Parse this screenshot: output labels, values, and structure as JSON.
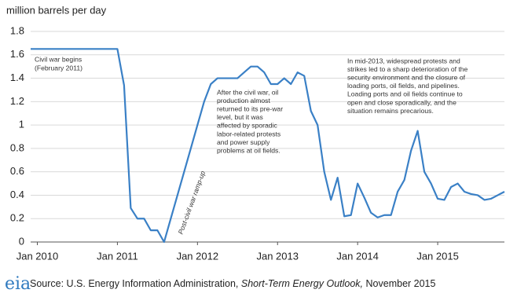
{
  "chart_data": {
    "type": "line",
    "y_axis_label": "million barrels per day",
    "x": [
      "2009-12",
      "2010-01",
      "2010-02",
      "2010-03",
      "2010-04",
      "2010-05",
      "2010-06",
      "2010-07",
      "2010-08",
      "2010-09",
      "2010-10",
      "2010-11",
      "2010-12",
      "2011-01",
      "2011-02",
      "2011-03",
      "2011-04",
      "2011-05",
      "2011-06",
      "2011-07",
      "2011-08",
      "2011-09",
      "2011-10",
      "2011-11",
      "2011-12",
      "2012-01",
      "2012-02",
      "2012-03",
      "2012-04",
      "2012-05",
      "2012-06",
      "2012-07",
      "2012-08",
      "2012-09",
      "2012-10",
      "2012-11",
      "2012-12",
      "2013-01",
      "2013-02",
      "2013-03",
      "2013-04",
      "2013-05",
      "2013-06",
      "2013-07",
      "2013-08",
      "2013-09",
      "2013-10",
      "2013-11",
      "2013-12",
      "2014-01",
      "2014-02",
      "2014-03",
      "2014-04",
      "2014-05",
      "2014-06",
      "2014-07",
      "2014-08",
      "2014-09",
      "2014-10",
      "2014-11",
      "2014-12",
      "2015-01",
      "2015-02",
      "2015-03",
      "2015-04",
      "2015-05",
      "2015-06",
      "2015-07",
      "2015-08",
      "2015-09",
      "2015-10",
      "2015-11"
    ],
    "values": [
      1.65,
      1.65,
      1.65,
      1.65,
      1.65,
      1.65,
      1.65,
      1.65,
      1.65,
      1.65,
      1.65,
      1.65,
      1.65,
      1.65,
      1.34,
      0.29,
      0.2,
      0.2,
      0.1,
      0.1,
      0,
      0.2,
      0.4,
      0.6,
      0.8,
      1.0,
      1.2,
      1.35,
      1.4,
      1.4,
      1.4,
      1.4,
      1.45,
      1.5,
      1.5,
      1.45,
      1.35,
      1.35,
      1.4,
      1.35,
      1.45,
      1.42,
      1.12,
      1.0,
      0.6,
      0.36,
      0.55,
      0.22,
      0.23,
      0.5,
      0.38,
      0.25,
      0.21,
      0.23,
      0.23,
      0.43,
      0.53,
      0.78,
      0.95,
      0.6,
      0.5,
      0.37,
      0.36,
      0.47,
      0.5,
      0.43,
      0.41,
      0.4,
      0.36,
      0.37,
      0.4,
      0.43
    ],
    "color": "#3a80c6",
    "xlim": [
      "2009-12",
      "2015-11"
    ],
    "xticks": [
      {
        "value": "2010-01",
        "label": "Jan 2010"
      },
      {
        "value": "2011-01",
        "label": "Jan 2011"
      },
      {
        "value": "2012-01",
        "label": "Jan 2012"
      },
      {
        "value": "2013-01",
        "label": "Jan 2013"
      },
      {
        "value": "2014-01",
        "label": "Jan 2014"
      },
      {
        "value": "2015-01",
        "label": "Jan 2015"
      }
    ],
    "ylim": [
      0,
      1.8
    ],
    "yticks": [
      0,
      0.2,
      0.4,
      0.6,
      0.8,
      1,
      1.2,
      1.4,
      1.6,
      1.8
    ],
    "grid": true,
    "annotations": [
      {
        "lines": [
          "Civil war begins",
          "(February 2011)"
        ]
      },
      {
        "lines": [
          "After the civil war, oil",
          "production almost",
          "returned to its pre-war",
          "level, but it was",
          "affected by sporadic",
          "labor-related protests",
          "and power supply",
          "problems at oil fields."
        ]
      },
      {
        "lines": [
          "In mid-2013, widespread protests and",
          "strikes led to a sharp deterioration of the",
          "security environment and the closure of",
          "loading ports, oil fields, and pipelines.",
          "Loading ports and oil fields continue to",
          "open and close sporadically, and the",
          "situation remains precarious."
        ]
      },
      {
        "lines": [
          "Post-civil war ramp-up"
        ]
      }
    ],
    "logo": "eia",
    "source": {
      "prefix": "Source: U.S. Energy Information Administration, ",
      "italic": "Short-Term Energy Outlook,",
      "suffix": " November 2015"
    }
  }
}
